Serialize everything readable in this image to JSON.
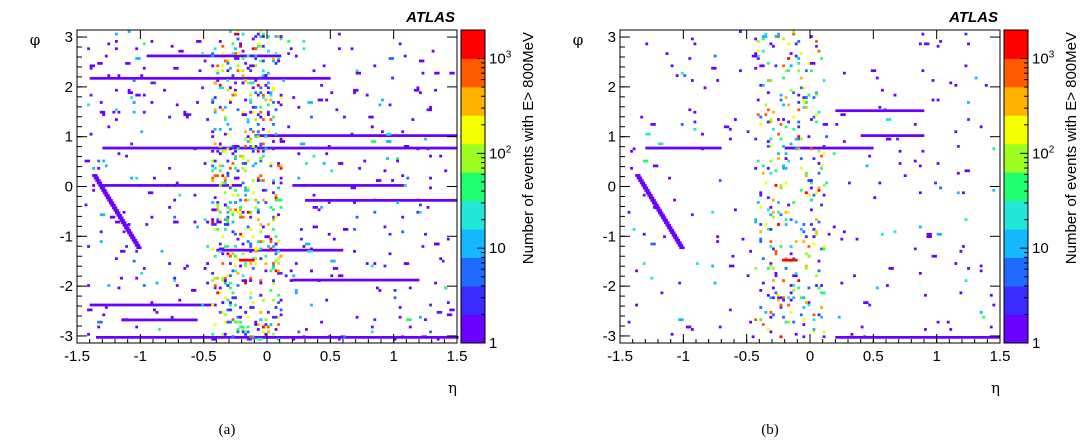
{
  "chart_data": [
    {
      "type": "heatmap",
      "watermark": "ATLAS",
      "xlabel": "η",
      "ylabel": "φ",
      "xlim": [
        -1.5,
        1.5
      ],
      "ylim": [
        -3.1416,
        3.1416
      ],
      "xticks": [
        -1.5,
        -1,
        -0.5,
        0,
        0.5,
        1,
        1.5
      ],
      "xtick_labels": [
        "-1.5",
        "-1",
        "-0.5",
        "0",
        "0.5",
        "1",
        "1.5"
      ],
      "yticks": [
        -3,
        -2,
        -1,
        0,
        1,
        2,
        3
      ],
      "ytick_labels": [
        "-3",
        "-2",
        "-1",
        "0",
        "1",
        "2",
        "3"
      ],
      "colorbar": {
        "label": "Number of events with E> 800MeV",
        "scale": "log",
        "range": [
          1,
          2000
        ],
        "tick_labels": [
          "1",
          "10",
          "10",
          "10"
        ],
        "tick_exponents": [
          "",
          "",
          "2",
          "3"
        ],
        "colors": [
          "#6a00ff",
          "#3a2bff",
          "#1f6bff",
          "#14b8ff",
          "#22e6d6",
          "#20ff70",
          "#9bff20",
          "#f5ff00",
          "#ffb300",
          "#ff5a00",
          "#ff0000"
        ]
      },
      "caption": "(a)",
      "cells_note": "dense sparse map of hot calorimeter cells",
      "series": [
        {
          "eta_range": [
            -1.35,
            1.5
          ],
          "phi": -3.05,
          "value": 1
        },
        {
          "eta_range": [
            -1.3,
            -0.2
          ],
          "phi": 0.0,
          "value": 1
        },
        {
          "eta_range": [
            0.2,
            1.1
          ],
          "phi": 0.0,
          "value": 1
        },
        {
          "eta_range": [
            -1.3,
            1.5
          ],
          "phi": 0.75,
          "value": 1
        },
        {
          "eta_range": [
            -0.1,
            1.5
          ],
          "phi": 1.0,
          "value": 1
        },
        {
          "eta_range": [
            -1.4,
            0.5
          ],
          "phi": 2.15,
          "value": 1
        },
        {
          "eta_range": [
            -0.95,
            0.1
          ],
          "phi": 2.6,
          "value": 1
        },
        {
          "eta_range": [
            -1.4,
            -0.4
          ],
          "phi": -2.4,
          "value": 1
        },
        {
          "eta_range": [
            -1.15,
            -0.55
          ],
          "phi": -2.7,
          "value": 1
        },
        {
          "eta_range": [
            0.2,
            1.2
          ],
          "phi": -1.9,
          "value": 1
        },
        {
          "eta_range": [
            0.3,
            1.5
          ],
          "phi": -0.3,
          "value": 1
        },
        {
          "eta_range": [
            -0.4,
            0.6
          ],
          "phi": -1.3,
          "value": 1
        }
      ]
    },
    {
      "type": "heatmap",
      "watermark": "ATLAS",
      "xlabel": "η",
      "ylabel": "φ",
      "xlim": [
        -1.5,
        1.5
      ],
      "ylim": [
        -3.1416,
        3.1416
      ],
      "xticks": [
        -1.5,
        -1,
        -0.5,
        0,
        0.5,
        1,
        1.5
      ],
      "xtick_labels": [
        "-1.5",
        "-1",
        "-0.5",
        "0",
        "0.5",
        "1",
        "1.5"
      ],
      "yticks": [
        -3,
        -2,
        -1,
        0,
        1,
        2,
        3
      ],
      "ytick_labels": [
        "-3",
        "-2",
        "-1",
        "0",
        "1",
        "2",
        "3"
      ],
      "colorbar": {
        "label": "Number of events with E> 800MeV",
        "scale": "log",
        "range": [
          1,
          2000
        ],
        "tick_labels": [
          "1",
          "10",
          "10",
          "10"
        ],
        "tick_exponents": [
          "",
          "",
          "2",
          "3"
        ],
        "colors": [
          "#6a00ff",
          "#3a2bff",
          "#1f6bff",
          "#14b8ff",
          "#22e6d6",
          "#20ff70",
          "#9bff20",
          "#f5ff00",
          "#ffb300",
          "#ff5a00",
          "#ff0000"
        ]
      },
      "caption": "(b)",
      "cells_note": "cleaned map with fewer hot cells",
      "series": [
        {
          "eta_range": [
            0.2,
            1.5
          ],
          "phi": -3.05,
          "value": 1
        },
        {
          "eta_range": [
            -1.3,
            -0.7
          ],
          "phi": 0.75,
          "value": 1
        },
        {
          "eta_range": [
            -0.2,
            0.5
          ],
          "phi": 0.75,
          "value": 1
        },
        {
          "eta_range": [
            0.2,
            0.9
          ],
          "phi": 1.5,
          "value": 1
        },
        {
          "eta_range": [
            0.4,
            0.9
          ],
          "phi": 1.0,
          "value": 1
        }
      ]
    }
  ]
}
